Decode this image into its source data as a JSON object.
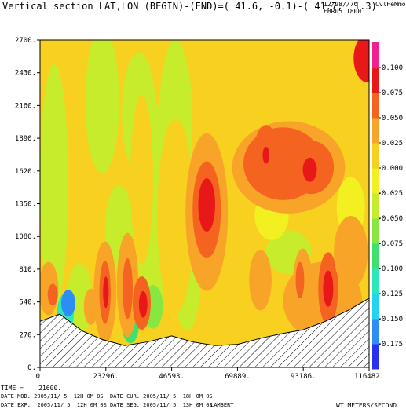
{
  "header": {
    "title": "Vertical section LAT,LON (BEGIN)-(END)=( 41.6, -0.1)-( 41.7,  1.3)",
    "date_code": "12/28//7C",
    "run_code": "EBR05 1800",
    "model": "CvlHeMmo"
  },
  "footer": {
    "time_label": "TIME =",
    "time_value": "21600.",
    "date_mod": "DATE MOD. 2005/11/ 5  12H 0M 0S",
    "date_cur": "DATE CUR. 2005/11/ 5  18H 0M 0S",
    "date_exp": "DATE EXP.  2005/11/ 5  12H 0M 0S",
    "date_seg": "DATE SEG. 2005/11/ 5  13H 0M 0S",
    "projection": "LAMBERT",
    "units": "WT METERS/SECOND"
  },
  "chart_data": {
    "type": "heatmap",
    "variable": "WT",
    "units": "METERS/SECOND",
    "xlim": [
      0,
      116482
    ],
    "ylim": [
      0,
      2700
    ],
    "x_ticks": [
      "0.",
      "23296.",
      "46593.",
      "69889.",
      "93186.",
      "116482."
    ],
    "y_ticks": [
      "0.",
      "270.",
      "540.",
      "810.",
      "1080.",
      "1350.",
      "1620.",
      "1890.",
      "2160.",
      "2430.",
      "2700."
    ],
    "colorbar": {
      "ticks": [
        "-0.175",
        "-0.150",
        "-0.125",
        "-0.100",
        "-0.075",
        "-0.050",
        "-0.025",
        "0.000",
        "0.025",
        "0.050",
        "0.075",
        "0.100"
      ],
      "levels": [
        -0.2,
        -0.175,
        -0.15,
        -0.125,
        -0.1,
        -0.075,
        -0.05,
        -0.025,
        0.0,
        0.025,
        0.05,
        0.075,
        0.1,
        0.125
      ],
      "colors": [
        "#2a30f0",
        "#2e8cf5",
        "#22d4f0",
        "#2ce8b8",
        "#40e070",
        "#88e640",
        "#c6ec2c",
        "#f2f020",
        "#f8d020",
        "#f8a428",
        "#f46420",
        "#e81818",
        "#f02090"
      ]
    },
    "terrain": {
      "color": "#000000",
      "pattern": "hatched",
      "x": [
        0,
        7000,
        15000,
        22000,
        30000,
        38000,
        46593,
        54000,
        62000,
        70000,
        78000,
        86000,
        93186,
        101000,
        109000,
        116482
      ],
      "height": [
        380,
        440,
        300,
        230,
        180,
        210,
        260,
        210,
        180,
        190,
        240,
        280,
        310,
        380,
        470,
        570
      ]
    },
    "features": [
      {
        "x": 108000,
        "z": 2600,
        "w": 9000,
        "h": 180,
        "value": 0.02
      },
      {
        "x": 116000,
        "z": 2550,
        "w": 5000,
        "h": 200,
        "value": 0.08
      },
      {
        "x": 20000,
        "z": 2480,
        "w": 10000,
        "h": 350,
        "value": 0.02
      },
      {
        "x": 30000,
        "z": 2330,
        "w": 5000,
        "h": 400,
        "value": 0.01
      },
      {
        "x": 62000,
        "z": 2500,
        "w": 12000,
        "h": 400,
        "value": 0.015
      },
      {
        "x": 5000,
        "z": 1500,
        "w": 5000,
        "h": 1000,
        "value": -0.03
      },
      {
        "x": 22000,
        "z": 2200,
        "w": 6000,
        "h": 600,
        "value": -0.05
      },
      {
        "x": 35000,
        "z": 2100,
        "w": 6000,
        "h": 500,
        "value": -0.035
      },
      {
        "x": 40000,
        "z": 1300,
        "w": 6000,
        "h": 900,
        "value": -0.04
      },
      {
        "x": 48000,
        "z": 2000,
        "w": 6000,
        "h": 700,
        "value": -0.04
      },
      {
        "x": 52000,
        "z": 800,
        "w": 5000,
        "h": 500,
        "value": -0.04
      },
      {
        "x": 28000,
        "z": 1150,
        "w": 5000,
        "h": 350,
        "value": -0.035
      },
      {
        "x": 88000,
        "z": 950,
        "w": 8000,
        "h": 180,
        "value": -0.03
      },
      {
        "x": 82000,
        "z": 1250,
        "w": 6000,
        "h": 200,
        "value": -0.015
      },
      {
        "x": 110000,
        "z": 1320,
        "w": 5000,
        "h": 250,
        "value": -0.02
      },
      {
        "x": 14000,
        "z": 560,
        "w": 4500,
        "h": 300,
        "value": -0.05
      },
      {
        "x": 9000,
        "z": 450,
        "w": 3000,
        "h": 160,
        "value": -0.12
      },
      {
        "x": 10000,
        "z": 530,
        "w": 2500,
        "h": 110,
        "value": -0.16
      },
      {
        "x": 32000,
        "z": 350,
        "w": 3000,
        "h": 150,
        "value": -0.08
      },
      {
        "x": 40000,
        "z": 500,
        "w": 3500,
        "h": 180,
        "value": -0.065
      },
      {
        "x": 3000,
        "z": 650,
        "w": 3500,
        "h": 220,
        "value": 0.04
      },
      {
        "x": 4500,
        "z": 600,
        "w": 1800,
        "h": 90,
        "value": 0.07
      },
      {
        "x": 23000,
        "z": 620,
        "w": 4000,
        "h": 420,
        "value": 0.04
      },
      {
        "x": 23000,
        "z": 620,
        "w": 2000,
        "h": 260,
        "value": 0.065
      },
      {
        "x": 23300,
        "z": 620,
        "w": 1000,
        "h": 130,
        "value": 0.09
      },
      {
        "x": 31000,
        "z": 680,
        "w": 3800,
        "h": 430,
        "value": 0.045
      },
      {
        "x": 31000,
        "z": 650,
        "w": 1800,
        "h": 250,
        "value": 0.07
      },
      {
        "x": 36000,
        "z": 530,
        "w": 3200,
        "h": 220,
        "value": 0.05
      },
      {
        "x": 36500,
        "z": 520,
        "w": 1500,
        "h": 110,
        "value": 0.085
      },
      {
        "x": 18000,
        "z": 500,
        "w": 2500,
        "h": 150,
        "value": 0.04
      },
      {
        "x": 36000,
        "z": 1550,
        "w": 4000,
        "h": 700,
        "value": 0.015
      },
      {
        "x": 48000,
        "z": 1250,
        "w": 6500,
        "h": 800,
        "value": 0.02
      },
      {
        "x": 59000,
        "z": 1280,
        "w": 7500,
        "h": 650,
        "value": 0.045
      },
      {
        "x": 59000,
        "z": 1300,
        "w": 5000,
        "h": 400,
        "value": 0.065
      },
      {
        "x": 59000,
        "z": 1340,
        "w": 3000,
        "h": 220,
        "value": 0.08
      },
      {
        "x": 88000,
        "z": 1650,
        "w": 20000,
        "h": 380,
        "value": 0.035
      },
      {
        "x": 86000,
        "z": 1680,
        "w": 14000,
        "h": 300,
        "value": 0.05
      },
      {
        "x": 96000,
        "z": 1650,
        "w": 8000,
        "h": 220,
        "value": 0.06
      },
      {
        "x": 95500,
        "z": 1630,
        "w": 2500,
        "h": 100,
        "value": 0.09
      },
      {
        "x": 80000,
        "z": 1800,
        "w": 4000,
        "h": 200,
        "value": 0.06
      },
      {
        "x": 80000,
        "z": 1750,
        "w": 1200,
        "h": 70,
        "value": 0.08
      },
      {
        "x": 100000,
        "z": 550,
        "w": 14000,
        "h": 320,
        "value": 0.03
      },
      {
        "x": 102000,
        "z": 650,
        "w": 3500,
        "h": 300,
        "value": 0.06
      },
      {
        "x": 102000,
        "z": 650,
        "w": 1800,
        "h": 150,
        "value": 0.08
      },
      {
        "x": 93000,
        "z": 680,
        "w": 3500,
        "h": 300,
        "value": 0.04
      },
      {
        "x": 92000,
        "z": 720,
        "w": 1500,
        "h": 150,
        "value": 0.06
      },
      {
        "x": 110000,
        "z": 950,
        "w": 6000,
        "h": 300,
        "value": 0.03
      },
      {
        "x": 78000,
        "z": 720,
        "w": 4000,
        "h": 250,
        "value": 0.025
      }
    ]
  }
}
